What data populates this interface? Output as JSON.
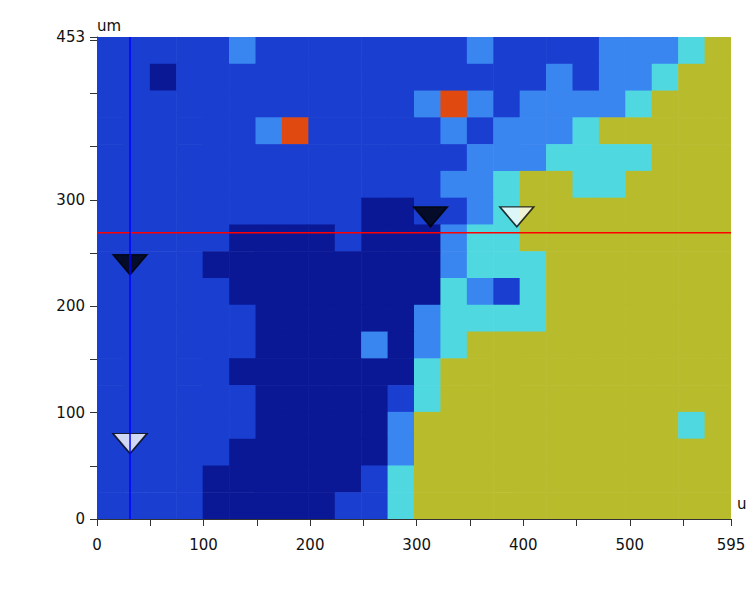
{
  "chart_data": {
    "type": "heatmap",
    "x_label": "u",
    "y_label": "um",
    "xlim": [
      0,
      595
    ],
    "ylim": [
      0,
      453
    ],
    "xticks": [
      0,
      100,
      200,
      300,
      400,
      500,
      595
    ],
    "yticks": [
      0,
      100,
      200,
      300,
      453
    ],
    "grid": false,
    "cells": {
      "level_colors": [
        "#0a1896",
        "#1a3fd0",
        "#3a86f0",
        "#4fd8e0",
        "#b8bc2c",
        "#e04a10"
      ],
      "rows": [
        [
          1,
          1,
          1,
          1,
          1,
          2,
          1,
          1,
          1,
          1,
          1,
          1,
          1,
          1,
          2,
          1,
          1,
          1,
          1,
          2,
          2,
          2,
          3,
          4
        ],
        [
          1,
          1,
          0,
          1,
          1,
          1,
          1,
          1,
          1,
          1,
          1,
          1,
          1,
          1,
          1,
          1,
          1,
          2,
          1,
          2,
          2,
          3,
          4,
          4
        ],
        [
          1,
          1,
          1,
          1,
          1,
          1,
          1,
          1,
          1,
          1,
          1,
          1,
          2,
          5,
          2,
          1,
          2,
          2,
          2,
          2,
          3,
          4,
          4,
          4
        ],
        [
          1,
          1,
          1,
          1,
          1,
          1,
          2,
          5,
          1,
          1,
          1,
          1,
          1,
          2,
          1,
          2,
          2,
          2,
          3,
          4,
          4,
          4,
          4,
          4
        ],
        [
          1,
          1,
          1,
          1,
          1,
          1,
          1,
          1,
          1,
          1,
          1,
          1,
          1,
          1,
          2,
          2,
          2,
          3,
          3,
          3,
          3,
          4,
          4,
          4
        ],
        [
          1,
          1,
          1,
          1,
          1,
          1,
          1,
          1,
          1,
          1,
          1,
          1,
          1,
          2,
          2,
          3,
          4,
          4,
          3,
          3,
          4,
          4,
          4,
          4
        ],
        [
          1,
          1,
          1,
          1,
          1,
          1,
          1,
          1,
          1,
          1,
          0,
          0,
          1,
          1,
          2,
          3,
          4,
          4,
          4,
          4,
          4,
          4,
          4,
          4
        ],
        [
          1,
          1,
          1,
          1,
          1,
          0,
          0,
          0,
          0,
          1,
          0,
          0,
          0,
          2,
          3,
          3,
          4,
          4,
          4,
          4,
          4,
          4,
          4,
          4
        ],
        [
          1,
          1,
          1,
          1,
          0,
          0,
          0,
          0,
          0,
          0,
          0,
          0,
          0,
          2,
          3,
          3,
          3,
          4,
          4,
          4,
          4,
          4,
          4,
          4
        ],
        [
          1,
          1,
          1,
          1,
          1,
          0,
          0,
          0,
          0,
          0,
          0,
          0,
          0,
          3,
          2,
          1,
          3,
          4,
          4,
          4,
          4,
          4,
          4,
          4
        ],
        [
          1,
          1,
          1,
          1,
          1,
          1,
          0,
          0,
          0,
          0,
          0,
          0,
          2,
          3,
          3,
          3,
          3,
          4,
          4,
          4,
          4,
          4,
          4,
          4
        ],
        [
          1,
          1,
          1,
          1,
          1,
          1,
          0,
          0,
          0,
          0,
          2,
          0,
          2,
          3,
          4,
          4,
          4,
          4,
          4,
          4,
          4,
          4,
          4,
          4
        ],
        [
          1,
          1,
          1,
          1,
          1,
          0,
          0,
          0,
          0,
          0,
          0,
          0,
          3,
          4,
          4,
          4,
          4,
          4,
          4,
          4,
          4,
          4,
          4,
          4
        ],
        [
          1,
          1,
          1,
          1,
          1,
          1,
          0,
          0,
          0,
          0,
          0,
          1,
          3,
          4,
          4,
          4,
          4,
          4,
          4,
          4,
          4,
          4,
          4,
          4
        ],
        [
          1,
          1,
          1,
          1,
          1,
          1,
          0,
          0,
          0,
          0,
          0,
          2,
          4,
          4,
          4,
          4,
          4,
          4,
          4,
          4,
          4,
          4,
          3,
          4
        ],
        [
          1,
          1,
          1,
          1,
          1,
          0,
          0,
          0,
          0,
          0,
          0,
          2,
          4,
          4,
          4,
          4,
          4,
          4,
          4,
          4,
          4,
          4,
          4,
          4
        ],
        [
          1,
          1,
          1,
          1,
          0,
          0,
          0,
          0,
          0,
          0,
          1,
          3,
          4,
          4,
          4,
          4,
          4,
          4,
          4,
          4,
          4,
          4,
          4,
          4
        ],
        [
          1,
          1,
          1,
          1,
          0,
          0,
          0,
          0,
          0,
          1,
          1,
          3,
          4,
          4,
          4,
          4,
          4,
          4,
          4,
          4,
          4,
          4,
          4,
          4
        ]
      ]
    },
    "h_line": {
      "y": 269,
      "color": "#ff0000"
    },
    "v_line": {
      "x": 31,
      "color": "#0000ff"
    },
    "markers": [
      {
        "x": 31,
        "y": 239,
        "color": "#000000"
      },
      {
        "x": 31,
        "y": 71,
        "color": "#ffffff"
      },
      {
        "x": 313,
        "y": 284,
        "color": "#000000"
      },
      {
        "x": 394,
        "y": 284,
        "color": "#ffffff"
      }
    ]
  }
}
